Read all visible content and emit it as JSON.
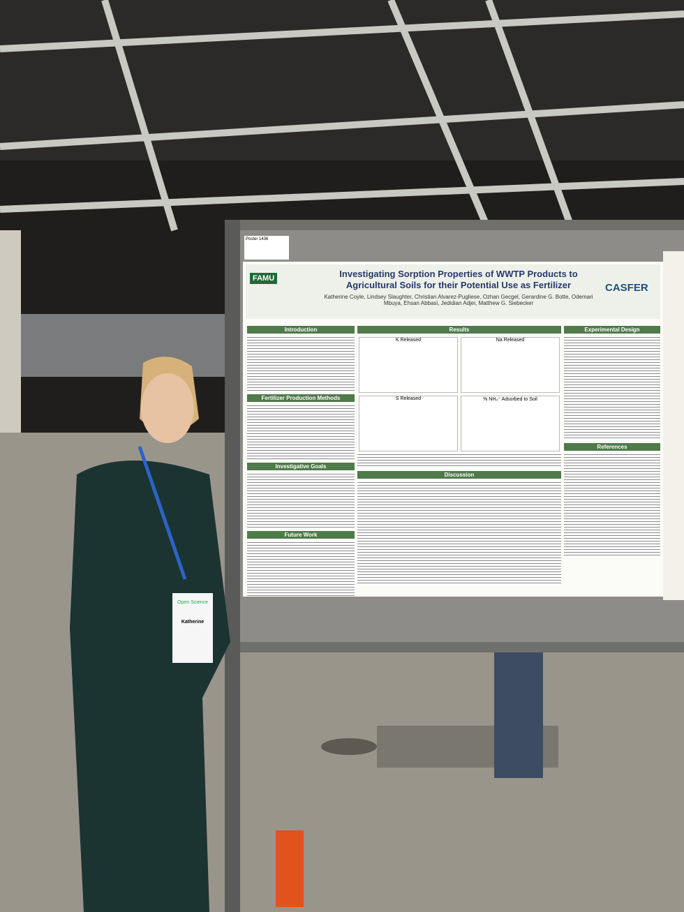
{
  "poster": {
    "label": "Poster 1436",
    "title": "Investigating Sorption Properties of WWTP Products to Agricultural Soils for their Potential Use as Fertilizer",
    "authors": "Katherine Coyle, Lindsey Slaughter, Christian Alvarez-Pugliese, Ozhan Gecgel, Gerardine G. Botte, Odemari Mbuya, Ehsan Abbasi, Jedidian Adjei, Matthew G. Siebecker",
    "logos": [
      "FAMU",
      "CASFER"
    ],
    "left_sections": [
      "Introduction",
      "Fertilizer Production Methods",
      "Investigative Goals",
      "Future Work"
    ],
    "middle_sections": [
      "Results",
      "Discussion"
    ],
    "right_sections": [
      "Experimental Design",
      "References"
    ],
    "charts": [
      "K Released",
      "Na Released",
      "S Released",
      "% NH₄⁺ Adsorbed to Soil"
    ]
  },
  "badge": {
    "event": "Open Science",
    "name": "Katherine"
  }
}
